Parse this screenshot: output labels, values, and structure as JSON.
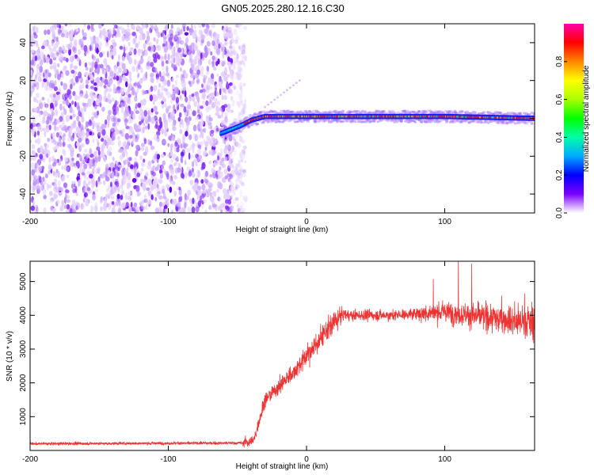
{
  "title": "GN05.2025.280.12.16.C30",
  "chart_data": [
    {
      "type": "heatmap",
      "name": "spectrogram",
      "xlabel": "Height of straight line (km)",
      "ylabel": "Frequency (Hz)",
      "xlim": [
        -200,
        165
      ],
      "ylim": [
        -50,
        50
      ],
      "xticks": [
        -200,
        -100,
        0,
        100
      ],
      "xtick_labels": [
        "-200",
        "-100",
        "0",
        "100"
      ],
      "yticks": [
        -40,
        -20,
        0,
        20,
        40
      ],
      "ytick_labels": [
        "-40",
        "-20",
        "0",
        "20",
        "40"
      ],
      "grid": false,
      "noise_region_x": [
        -200,
        -46
      ],
      "signal_track": {
        "x": [
          -62,
          -55,
          -48,
          -40,
          -35,
          -30,
          -20,
          0,
          50,
          100,
          165
        ],
        "y": [
          -8,
          -6,
          -4,
          -1,
          0,
          1,
          1,
          1,
          1,
          1,
          0
        ]
      },
      "stray_points": {
        "x": [
          -30,
          -5
        ],
        "y": [
          6,
          20
        ]
      },
      "colorbar": {
        "label": "Normalized spectral amplitude",
        "range": [
          0,
          1
        ],
        "ticks": [
          0.0,
          0.2,
          0.4,
          0.6,
          0.8
        ],
        "tick_labels": [
          "0.0",
          "0.2",
          "0.4",
          "0.6",
          "0.8"
        ],
        "colors": [
          "#ffffff",
          "#7b00ff",
          "#0000ff",
          "#00aaff",
          "#00ffaa",
          "#00ff00",
          "#aaff00",
          "#ffff00",
          "#ff8800",
          "#ff0000",
          "#ff00aa"
        ]
      }
    },
    {
      "type": "line",
      "name": "snr",
      "xlabel": "Height of straight line (km)",
      "ylabel": "SNR (10 * v/v)",
      "xlim": [
        -200,
        165
      ],
      "ylim": [
        0,
        5600
      ],
      "xticks": [
        -200,
        -100,
        0,
        100
      ],
      "xtick_labels": [
        "-200",
        "-100",
        "0",
        "100"
      ],
      "yticks": [
        1000,
        2000,
        3000,
        4000,
        5000
      ],
      "ytick_labels": [
        "1000",
        "2000",
        "3000",
        "4000",
        "5000"
      ],
      "grid": false,
      "color": "#ee3333",
      "envelope": {
        "x": [
          -200,
          -46,
          -38,
          -35,
          -30,
          -20,
          -10,
          0,
          10,
          20,
          25,
          40,
          60,
          80,
          100,
          120,
          140,
          165
        ],
        "y": [
          200,
          220,
          300,
          800,
          1500,
          1900,
          2300,
          2800,
          3300,
          3800,
          4000,
          4000,
          4000,
          4050,
          4100,
          4000,
          3900,
          3800
        ]
      }
    }
  ]
}
